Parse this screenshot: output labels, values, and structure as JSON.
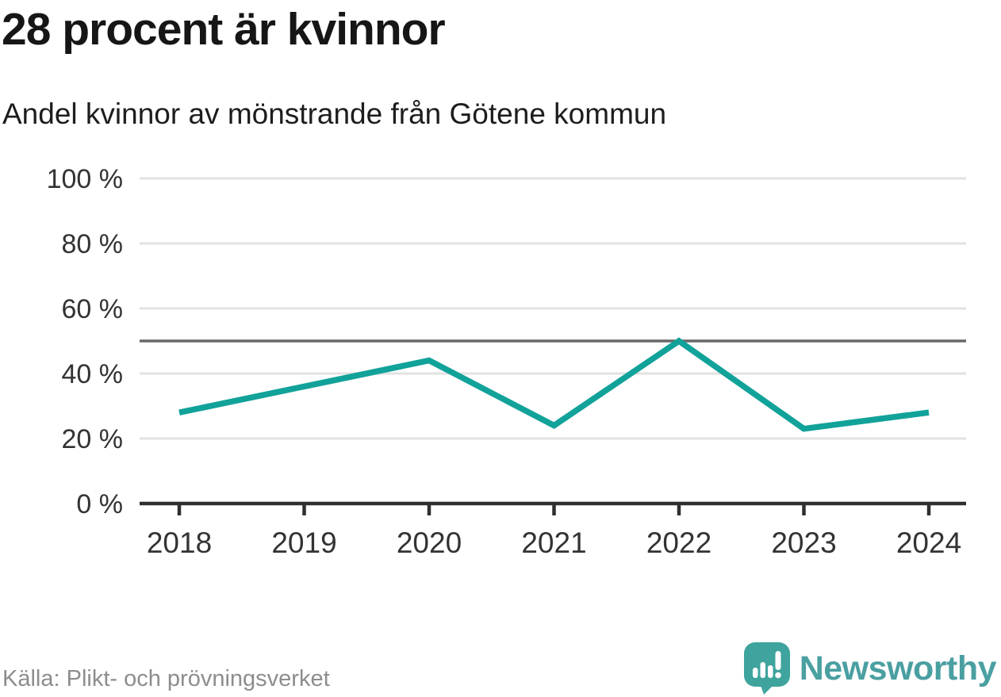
{
  "header": {
    "title": "28 procent är kvinnor",
    "subtitle": "Andel kvinnor av mönstrande från Götene kommun"
  },
  "chart_data": {
    "type": "line",
    "title": "28 procent är kvinnor",
    "subtitle": "Andel kvinnor av mönstrande från Götene kommun",
    "x": [
      2018,
      2019,
      2020,
      2021,
      2022,
      2023,
      2024
    ],
    "series": [
      {
        "name": "Andel kvinnor av mönstrande",
        "values": [
          28,
          36,
          44,
          24,
          50,
          23,
          28
        ]
      }
    ],
    "unit": "%",
    "ylim": [
      0,
      100
    ],
    "y_ticks": [
      {
        "value": 0,
        "label": "0 %"
      },
      {
        "value": 20,
        "label": "20 %"
      },
      {
        "value": 40,
        "label": "40 %"
      },
      {
        "value": 60,
        "label": "60 %"
      },
      {
        "value": 80,
        "label": "80 %"
      },
      {
        "value": 100,
        "label": "100 %"
      }
    ],
    "reference_line": {
      "value": 50
    },
    "grid": true,
    "legend_position": "none",
    "colors": {
      "line": "#11A29A",
      "reference": "#696969",
      "grid": "#E2E2E2",
      "axis": "#2F2F2F",
      "tick_text": "#333333"
    }
  },
  "footer": {
    "source": "Källa: Plikt- och prövningsverket",
    "brand": "Newsworthy",
    "brand_color": "#4A9FA1",
    "logo_color": "#3EA49D"
  }
}
